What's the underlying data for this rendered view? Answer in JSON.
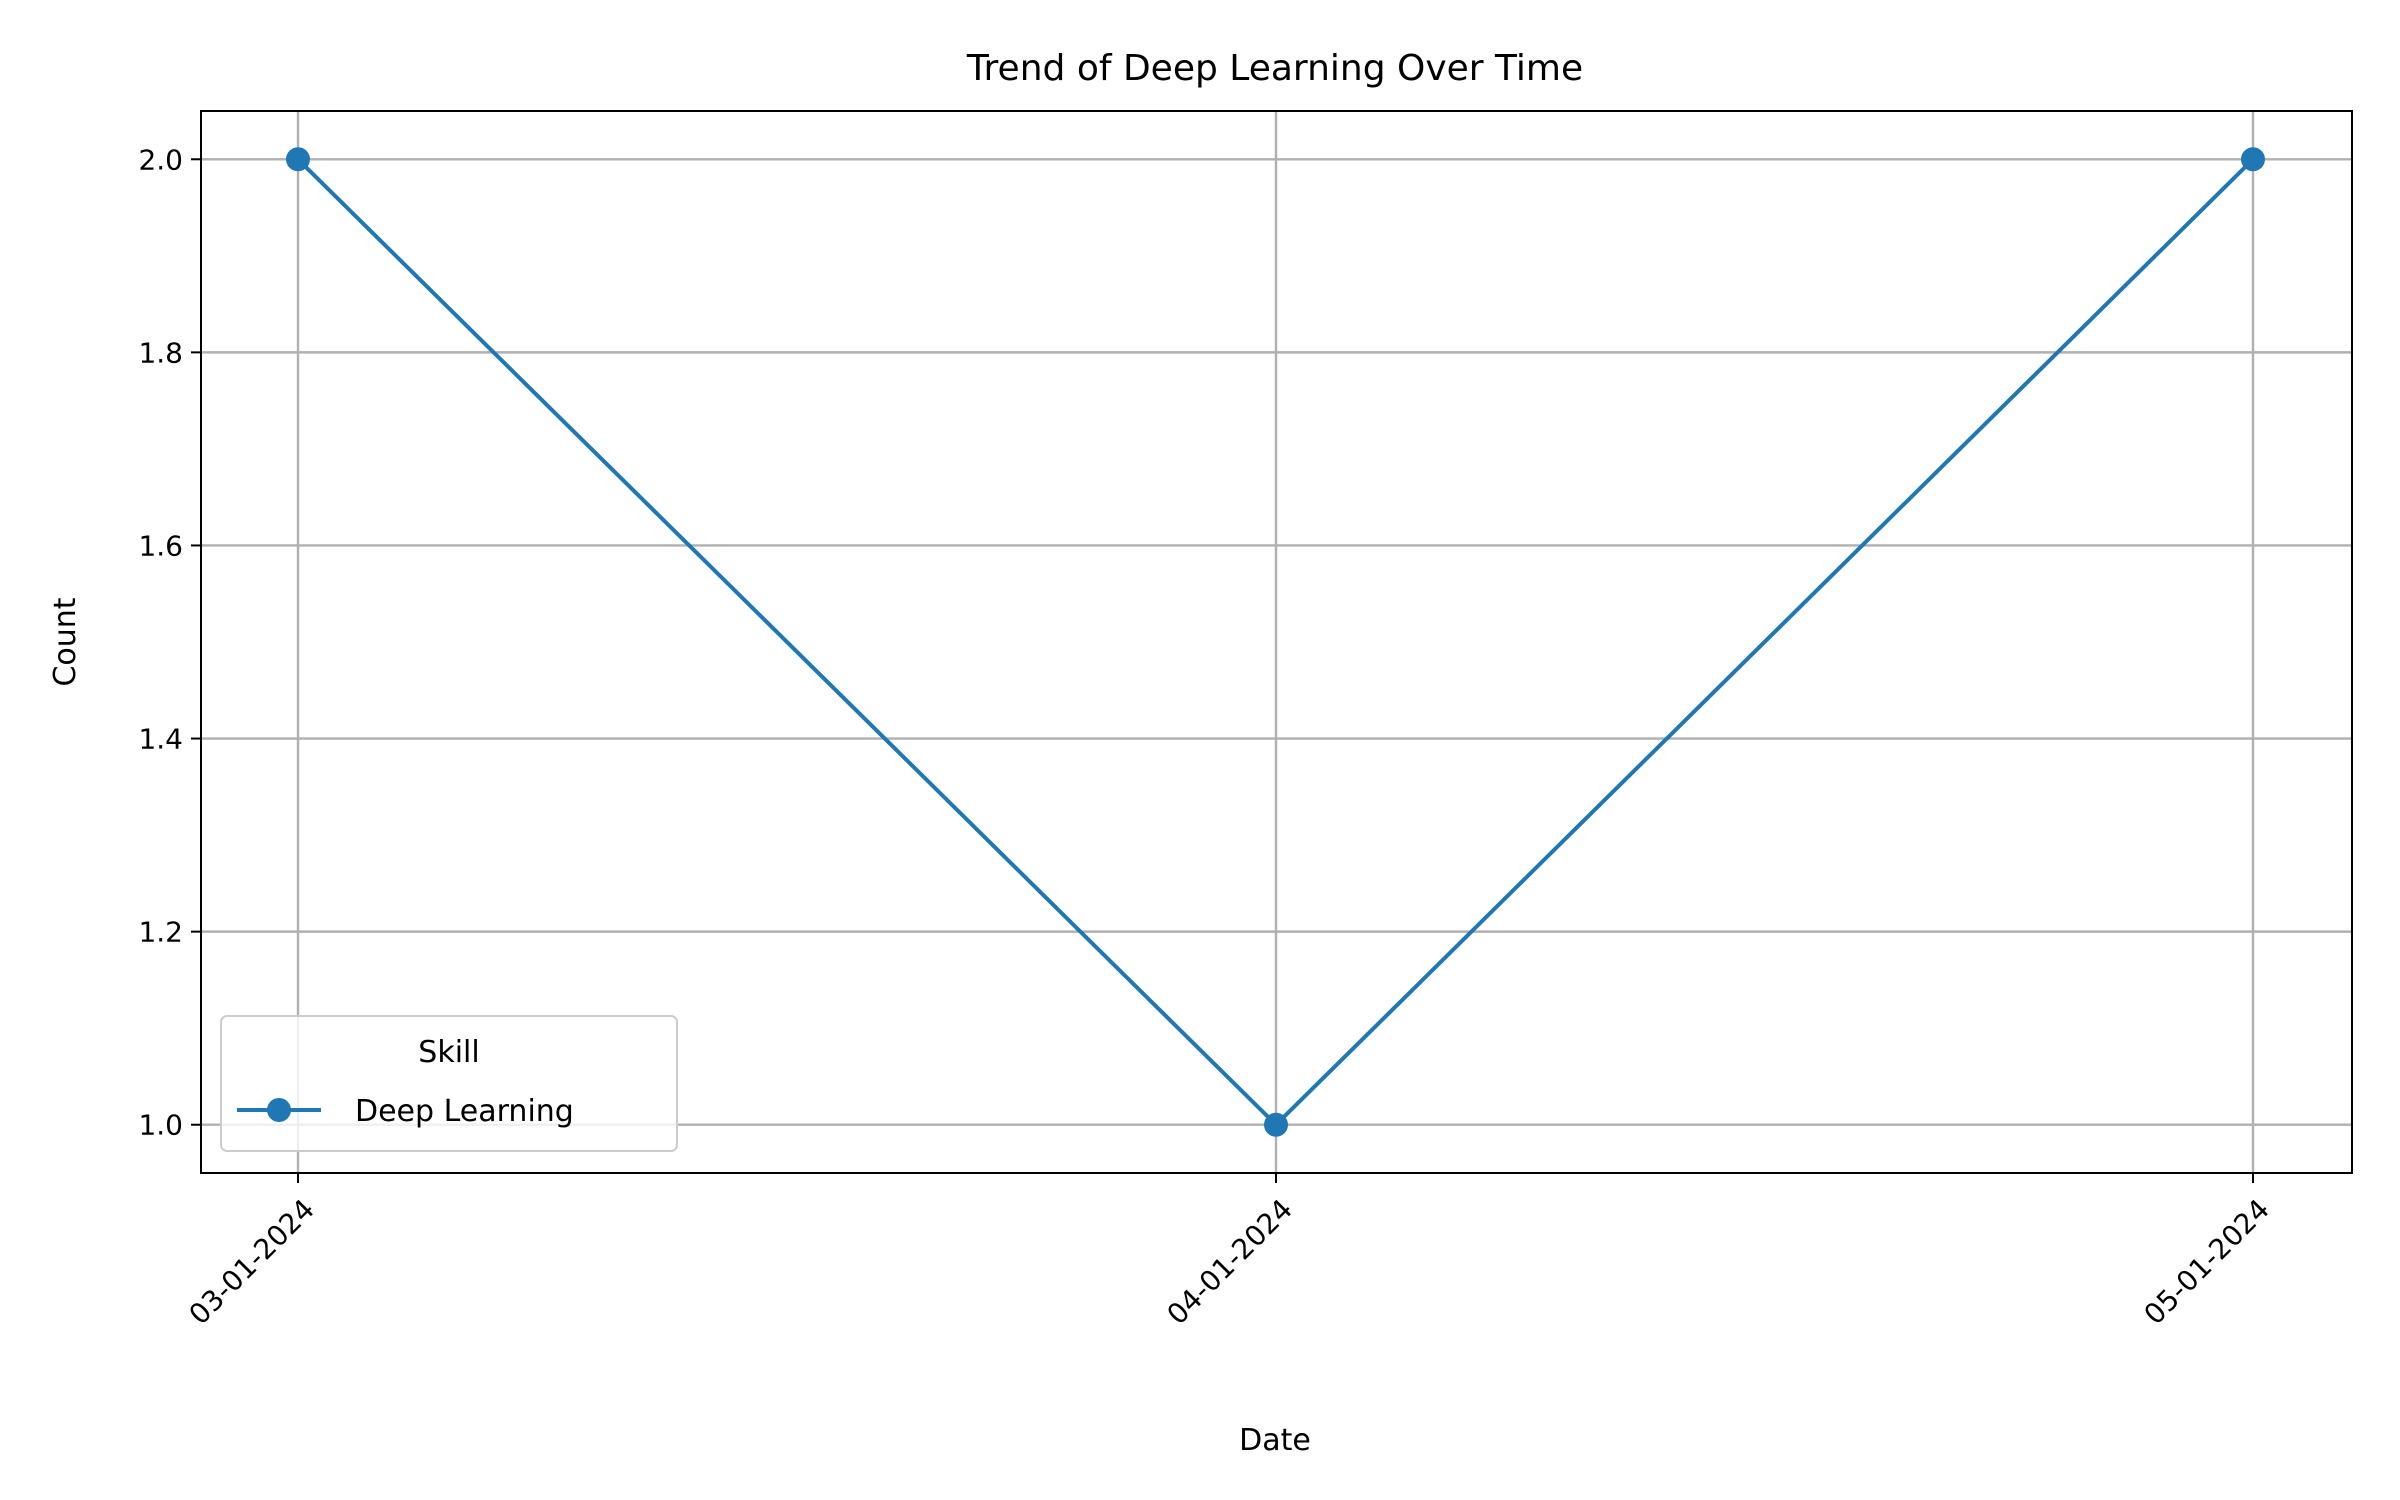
{
  "chart_data": {
    "type": "line",
    "title": "Trend of Deep Learning Over Time",
    "xlabel": "Date",
    "ylabel": "Count",
    "categories": [
      "03-01-2024",
      "04-01-2024",
      "05-01-2024"
    ],
    "series": [
      {
        "name": "Deep Learning",
        "values": [
          2.0,
          1.0,
          2.0
        ],
        "color": "#1f77b4",
        "marker": "circle"
      }
    ],
    "yticks": [
      "1.0",
      "1.2",
      "1.4",
      "1.6",
      "1.8",
      "2.0"
    ],
    "ylim": [
      0.95,
      2.05
    ],
    "grid": true,
    "legend": {
      "title": "Skill",
      "placement": "lower-left"
    }
  }
}
